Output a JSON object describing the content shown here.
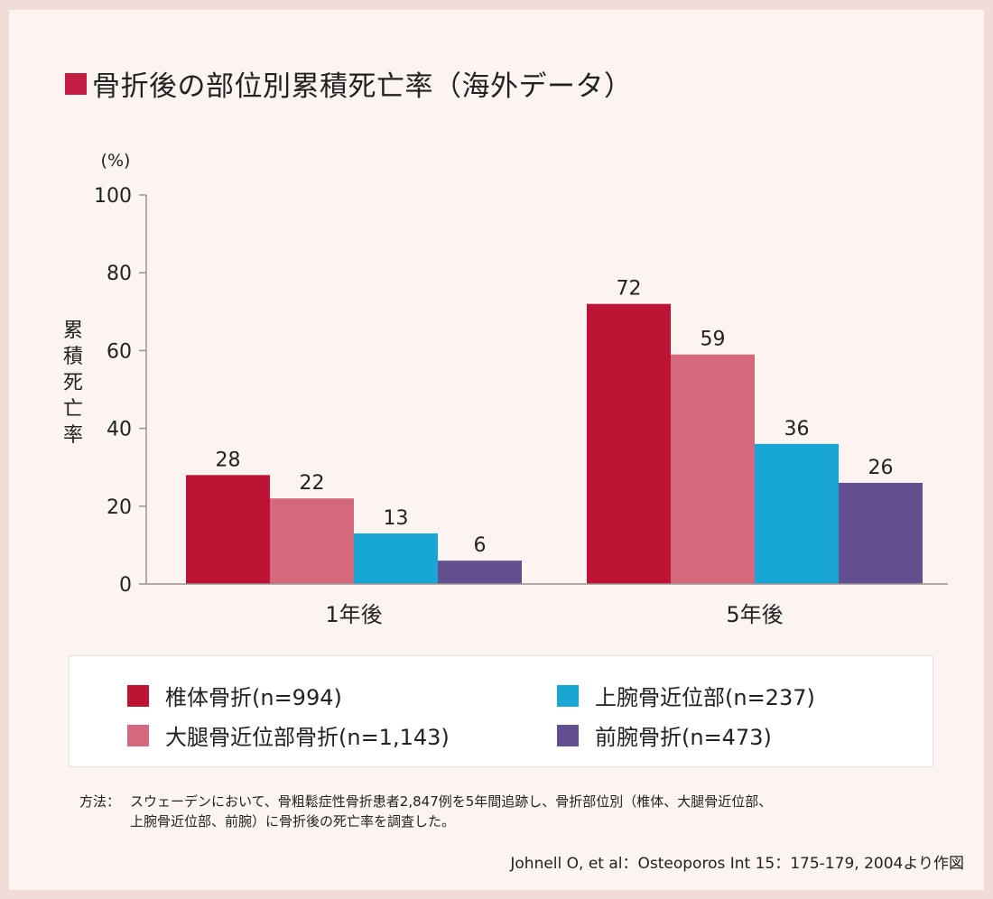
{
  "title": "骨折後の部位別累積死亡率（海外データ）",
  "title_marker_color": "#c41e45",
  "chart_data": {
    "type": "bar",
    "title": "骨折後の部位別累積死亡率（海外データ）",
    "xlabel": "",
    "ylabel": "累積死亡率",
    "yunit": "(%)",
    "ylim": [
      0,
      100
    ],
    "yticks": [
      0,
      20,
      40,
      60,
      80,
      100
    ],
    "grid": false,
    "categories": [
      "1年後",
      "5年後"
    ],
    "series": [
      {
        "name": "椎体骨折(n=994)",
        "color": "#bd1436",
        "values": [
          28,
          72
        ]
      },
      {
        "name": "大腿骨近位部骨折(n=1,143)",
        "color": "#d4697e",
        "values": [
          22,
          59
        ]
      },
      {
        "name": "上腕骨近位部(n=237)",
        "color": "#18a6d4",
        "values": [
          13,
          36
        ]
      },
      {
        "name": "前腕骨折(n=473)",
        "color": "#614f8f",
        "values": [
          6,
          26
        ]
      }
    ],
    "legend_position": "bottom"
  },
  "ylabel_chars": [
    "累",
    "積",
    "死",
    "亡",
    "率"
  ],
  "note": {
    "label": "方法：",
    "line1": "スウェーデンにおいて、骨粗鬆症性骨折患者2,847例を5年間追跡し、骨折部位別（椎体、大腿骨近位部、",
    "line2": "上腕骨近位部、前腕）に骨折後の死亡率を調査した。"
  },
  "citation": "Johnell O, et al：Osteoporos Int 15：175-179, 2004より作図"
}
